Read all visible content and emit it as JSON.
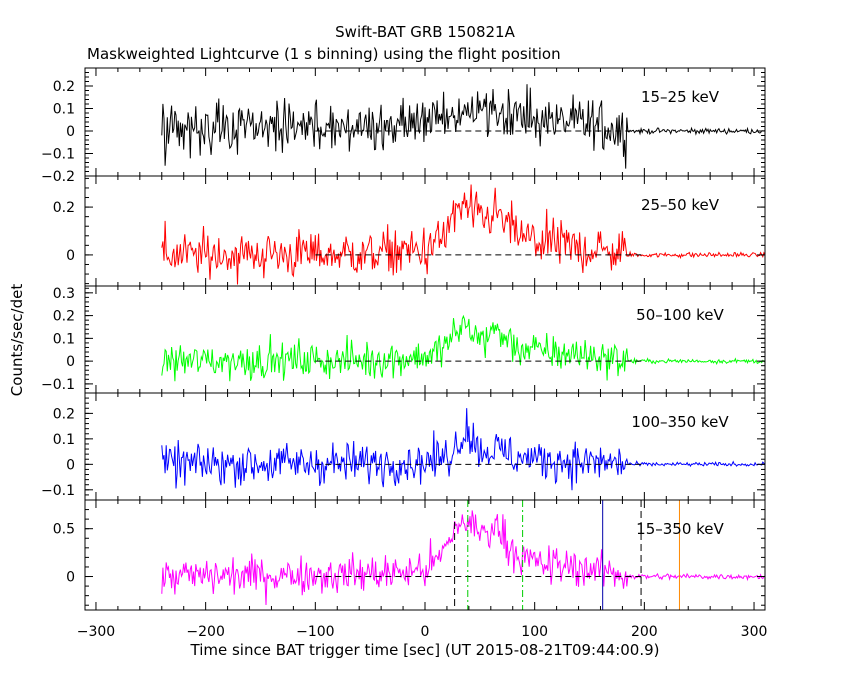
{
  "chart_data": {
    "type": "line",
    "title": "Swift-BAT GRB 150821A",
    "subtitle": "Maskweighted Lightcurve (1 s binning) using the flight position",
    "xlabel": "Time since BAT trigger time [sec] (UT 2015-08-21T09:44:00.9)",
    "ylabel": "Counts/sec/det",
    "xlim": [
      -310,
      310
    ],
    "xticks": [
      -300,
      -200,
      -100,
      0,
      100,
      200,
      300
    ],
    "panels": [
      {
        "name": "15-25 keV",
        "label": "15–25 keV",
        "color": "#000000",
        "ylim": [
          -0.2,
          0.28
        ],
        "yticks": [
          -0.2,
          -0.1,
          0,
          0.1,
          0.2
        ],
        "yticklabels": [
          "−0.2",
          "−0.1",
          "0",
          "0.1",
          "0.2"
        ],
        "noise_early": 0.055,
        "noise_late": 0.006,
        "x": [
          -240,
          -100,
          -20,
          0,
          15,
          30,
          40,
          50,
          60,
          70,
          80,
          100,
          120,
          150,
          175,
          190,
          310
        ],
        "mean": [
          0.0,
          0.01,
          0.02,
          0.04,
          0.06,
          0.08,
          0.09,
          0.1,
          0.12,
          0.09,
          0.07,
          0.05,
          0.04,
          0.03,
          0.01,
          0.0,
          0.0
        ]
      },
      {
        "name": "25-50 keV",
        "label": "25–50 keV",
        "color": "#ff0000",
        "ylim": [
          -0.13,
          0.33
        ],
        "yticks": [
          0,
          0.2
        ],
        "yticklabels": [
          "0",
          "0.2"
        ],
        "noise_early": 0.05,
        "noise_late": 0.005,
        "x": [
          -240,
          -50,
          0,
          15,
          25,
          35,
          45,
          55,
          65,
          75,
          90,
          110,
          140,
          175,
          190,
          310
        ],
        "mean": [
          0.0,
          0.005,
          0.02,
          0.06,
          0.15,
          0.21,
          0.16,
          0.15,
          0.18,
          0.12,
          0.07,
          0.05,
          0.03,
          0.01,
          0.0,
          0.0
        ]
      },
      {
        "name": "50-100 keV",
        "label": "50–100 keV",
        "color": "#00ff00",
        "ylim": [
          -0.14,
          0.33
        ],
        "yticks": [
          -0.1,
          0,
          0.1,
          0.2,
          0.3
        ],
        "yticklabels": [
          "−0.1",
          "0",
          "0.1",
          "0.2",
          "0.3"
        ],
        "noise_early": 0.04,
        "noise_late": 0.005,
        "x": [
          -240,
          -50,
          0,
          15,
          25,
          35,
          45,
          55,
          65,
          75,
          90,
          110,
          140,
          175,
          190,
          310
        ],
        "mean": [
          0.0,
          0.005,
          0.02,
          0.05,
          0.1,
          0.16,
          0.12,
          0.1,
          0.14,
          0.09,
          0.05,
          0.04,
          0.03,
          0.01,
          0.0,
          0.0
        ]
      },
      {
        "name": "100-350 keV",
        "label": "100–350 keV",
        "color": "#0000ff",
        "ylim": [
          -0.14,
          0.28
        ],
        "yticks": [
          -0.1,
          0,
          0.1,
          0.2
        ],
        "yticklabels": [
          "−0.1",
          "0",
          "0.1",
          "0.2"
        ],
        "noise_early": 0.04,
        "noise_late": 0.004,
        "x": [
          -240,
          -50,
          0,
          20,
          30,
          38,
          45,
          55,
          65,
          80,
          100,
          140,
          175,
          190,
          310
        ],
        "mean": [
          0.0,
          0.005,
          0.01,
          0.03,
          0.08,
          0.15,
          0.08,
          0.05,
          0.06,
          0.03,
          0.02,
          0.01,
          0.005,
          0.0,
          0.0
        ]
      },
      {
        "name": "15-350 keV",
        "label": "15–350 keV",
        "color": "#ff00ff",
        "ylim": [
          -0.35,
          0.8
        ],
        "yticks": [
          0,
          0.5
        ],
        "yticklabels": [
          "0",
          "0.5"
        ],
        "noise_early": 0.1,
        "noise_late": 0.015,
        "x": [
          -240,
          -100,
          -20,
          0,
          15,
          25,
          35,
          45,
          55,
          65,
          75,
          90,
          110,
          140,
          175,
          190,
          310
        ],
        "mean": [
          0.0,
          0.02,
          0.04,
          0.08,
          0.2,
          0.45,
          0.6,
          0.5,
          0.45,
          0.55,
          0.35,
          0.18,
          0.12,
          0.1,
          0.03,
          0.0,
          0.0
        ]
      }
    ],
    "markers": [
      {
        "x": 27,
        "color": "#000000",
        "style": "dashed"
      },
      {
        "x": 39,
        "color": "#00cc00",
        "style": "dashdot"
      },
      {
        "x": 89,
        "color": "#00cc00",
        "style": "dashdot"
      },
      {
        "x": 162,
        "color": "#0000aa",
        "style": "solid"
      },
      {
        "x": 197,
        "color": "#000000",
        "style": "dashed"
      },
      {
        "x": 232,
        "color": "#ff8800",
        "style": "solid"
      }
    ],
    "zero_line": {
      "style": "dashed",
      "x_start": -100,
      "x_end": 200
    },
    "grid": false,
    "legend": "none"
  }
}
